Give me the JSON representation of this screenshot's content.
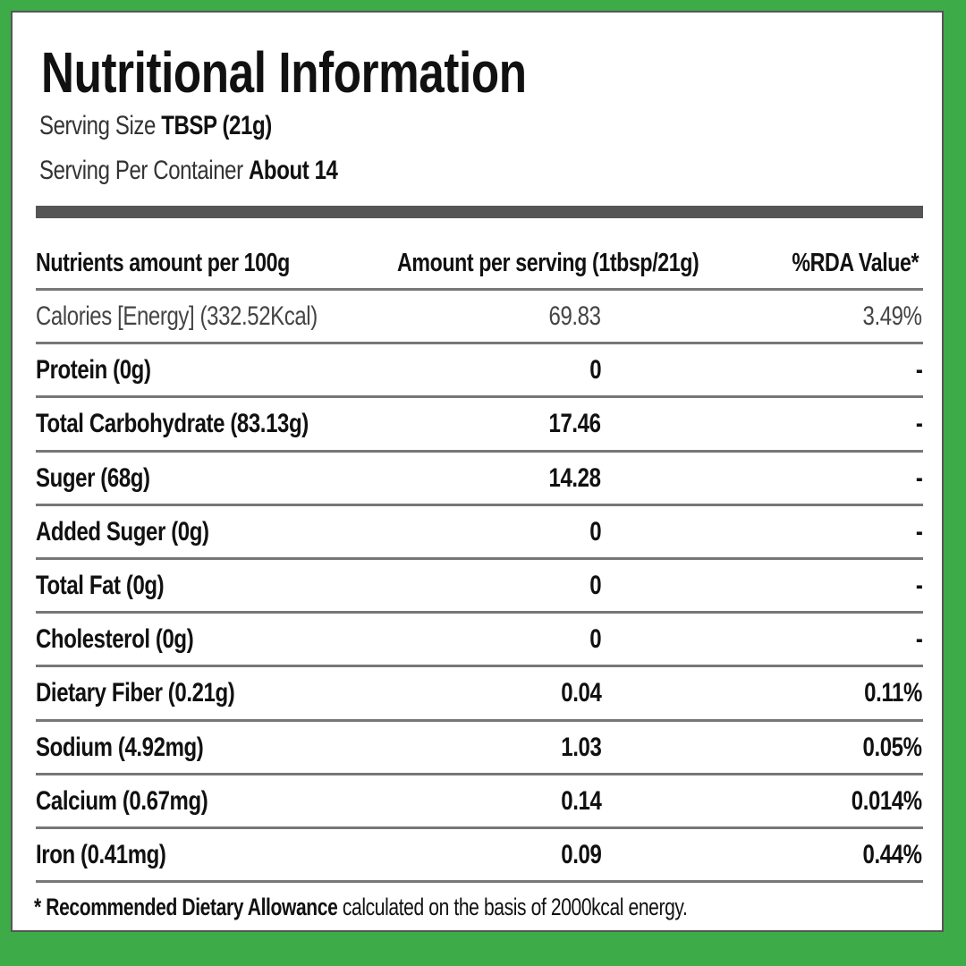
{
  "title": "Nutritional Information",
  "serving_size": {
    "label": "Serving Size",
    "value": "TBSP (21g)"
  },
  "servings_per_container": {
    "label": "Serving Per Container",
    "value": "About 14"
  },
  "table": {
    "headers": [
      "Nutrients amount per 100g",
      "Amount per serving (1tbsp/21g)",
      "%RDA Value*"
    ],
    "rows": [
      {
        "nutrient": "Calories [Energy] (332.52Kcal)",
        "per_serving": "69.83",
        "rda": "3.49%"
      },
      {
        "nutrient": "Protein (0g)",
        "per_serving": "0",
        "rda": "-"
      },
      {
        "nutrient": "Total Carbohydrate (83.13g)",
        "per_serving": "17.46",
        "rda": "-"
      },
      {
        "nutrient": "Suger (68g)",
        "per_serving": "14.28",
        "rda": "-"
      },
      {
        "nutrient": "Added Suger (0g)",
        "per_serving": "0",
        "rda": "-"
      },
      {
        "nutrient": "Total Fat (0g)",
        "per_serving": "0",
        "rda": "-"
      },
      {
        "nutrient": "Cholesterol (0g)",
        "per_serving": "0",
        "rda": "-"
      },
      {
        "nutrient": "Dietary Fiber (0.21g)",
        "per_serving": "0.04",
        "rda": "0.11%"
      },
      {
        "nutrient": "Sodium (4.92mg)",
        "per_serving": "1.03",
        "rda": "0.05%"
      },
      {
        "nutrient": "Calcium (0.67mg)",
        "per_serving": "0.14",
        "rda": "0.014%"
      },
      {
        "nutrient": "Iron (0.41mg)",
        "per_serving": "0.09",
        "rda": "0.44%"
      }
    ]
  },
  "footnote": {
    "bold": "* Recommended Dietary Allowance",
    "text": " calculated on the basis of 2000kcal energy."
  },
  "colors": {
    "background": "#3dab47",
    "panel": "#ffffff",
    "rule": "#555555"
  }
}
